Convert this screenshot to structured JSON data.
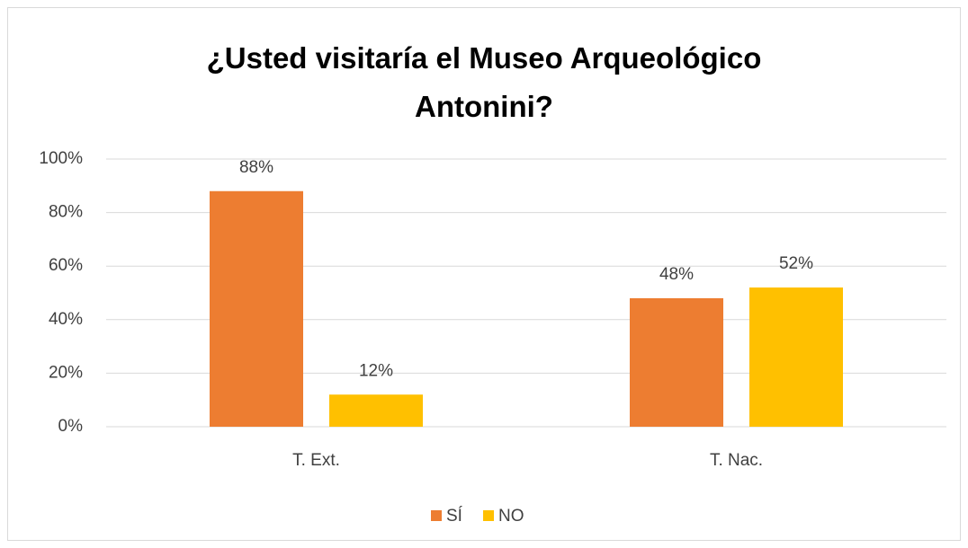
{
  "chart_data": {
    "type": "bar",
    "title": "¿Usted visitaría el Museo Arqueológico Antonini?",
    "categories": [
      "T. Ext.",
      "T. Nac."
    ],
    "series": [
      {
        "name": "SÍ",
        "color": "#ed7d31",
        "values": [
          88,
          48
        ],
        "value_labels": [
          "88%",
          "48%"
        ]
      },
      {
        "name": "NO",
        "color": "#ffc000",
        "values": [
          12,
          52
        ],
        "value_labels": [
          "12%",
          "52%"
        ]
      }
    ],
    "ylim": [
      0,
      100
    ],
    "yticks": [
      {
        "value": 0,
        "label": "0%"
      },
      {
        "value": 20,
        "label": "20%"
      },
      {
        "value": 40,
        "label": "40%"
      },
      {
        "value": 60,
        "label": "60%"
      },
      {
        "value": 80,
        "label": "80%"
      },
      {
        "value": 100,
        "label": "100%"
      }
    ],
    "grid": true,
    "legend": "bottom"
  }
}
